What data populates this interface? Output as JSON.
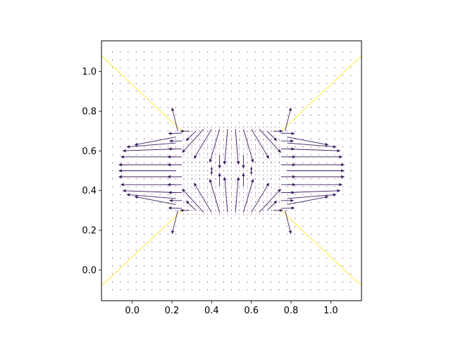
{
  "chart_data": {
    "type": "quiver",
    "title": "",
    "xlabel": "",
    "ylabel": "",
    "xlim": [
      -0.155,
      1.155
    ],
    "ylim": [
      -0.155,
      1.155
    ],
    "xticks": [
      0.0,
      0.2,
      0.4,
      0.6,
      0.8,
      1.0
    ],
    "xtick_labels": [
      "0.0",
      "0.2",
      "0.4",
      "0.6",
      "0.8",
      "1.0"
    ],
    "yticks": [
      0.0,
      0.2,
      0.4,
      0.6,
      0.8,
      1.0
    ],
    "ytick_labels": [
      "0.0",
      "0.2",
      "0.4",
      "0.6",
      "0.8",
      "1.0"
    ],
    "grid": false,
    "aspect": "equal",
    "colors": {
      "arrows": "#3b1f5e",
      "dots": "#440154",
      "diagonals": "#fde725",
      "axes": "#000000"
    },
    "diagonal_lines": [
      {
        "x": [
          -0.155,
          0.25
        ],
        "y": [
          1.08,
          0.7
        ]
      },
      {
        "x": [
          0.75,
          1.155
        ],
        "y": [
          0.7,
          1.08
        ]
      },
      {
        "x": [
          -0.155,
          0.25
        ],
        "y": [
          -0.08,
          0.3
        ]
      },
      {
        "x": [
          0.75,
          1.155
        ],
        "y": [
          0.3,
          -0.08
        ]
      }
    ],
    "arrows": [
      {
        "x": 0.25,
        "y": 0.31,
        "u": -0.07,
        "v": 0.003
      },
      {
        "x": 0.25,
        "y": 0.35,
        "u": -0.065,
        "v": 0.0
      },
      {
        "x": 0.25,
        "y": 0.39,
        "u": -0.07,
        "v": 0.0
      },
      {
        "x": 0.25,
        "y": 0.43,
        "u": -0.075,
        "v": 0.0
      },
      {
        "x": 0.25,
        "y": 0.47,
        "u": -0.075,
        "v": 0.0
      },
      {
        "x": 0.25,
        "y": 0.53,
        "u": -0.075,
        "v": 0.0
      },
      {
        "x": 0.25,
        "y": 0.57,
        "u": -0.075,
        "v": 0.0
      },
      {
        "x": 0.25,
        "y": 0.61,
        "u": -0.07,
        "v": 0.0
      },
      {
        "x": 0.25,
        "y": 0.65,
        "u": -0.065,
        "v": 0.0
      },
      {
        "x": 0.25,
        "y": 0.69,
        "u": -0.07,
        "v": -0.003
      },
      {
        "x": 0.22,
        "y": 0.33,
        "u": -0.21,
        "v": 0.04
      },
      {
        "x": 0.22,
        "y": 0.36,
        "u": -0.25,
        "v": 0.02
      },
      {
        "x": 0.22,
        "y": 0.39,
        "u": -0.27,
        "v": 0.01
      },
      {
        "x": 0.22,
        "y": 0.43,
        "u": -0.28,
        "v": 0.0
      },
      {
        "x": 0.22,
        "y": 0.47,
        "u": -0.29,
        "v": 0.0
      },
      {
        "x": 0.22,
        "y": 0.5,
        "u": -0.29,
        "v": 0.0
      },
      {
        "x": 0.22,
        "y": 0.53,
        "u": -0.29,
        "v": 0.0
      },
      {
        "x": 0.22,
        "y": 0.57,
        "u": -0.28,
        "v": 0.0
      },
      {
        "x": 0.22,
        "y": 0.61,
        "u": -0.27,
        "v": -0.01
      },
      {
        "x": 0.22,
        "y": 0.64,
        "u": -0.25,
        "v": -0.02
      },
      {
        "x": 0.22,
        "y": 0.67,
        "u": -0.21,
        "v": -0.04
      },
      {
        "x": 0.75,
        "y": 0.31,
        "u": 0.07,
        "v": 0.003
      },
      {
        "x": 0.75,
        "y": 0.35,
        "u": 0.065,
        "v": 0.0
      },
      {
        "x": 0.75,
        "y": 0.39,
        "u": 0.07,
        "v": 0.0
      },
      {
        "x": 0.75,
        "y": 0.43,
        "u": 0.075,
        "v": 0.0
      },
      {
        "x": 0.75,
        "y": 0.47,
        "u": 0.075,
        "v": 0.0
      },
      {
        "x": 0.75,
        "y": 0.53,
        "u": 0.075,
        "v": 0.0
      },
      {
        "x": 0.75,
        "y": 0.57,
        "u": 0.075,
        "v": 0.0
      },
      {
        "x": 0.75,
        "y": 0.61,
        "u": 0.07,
        "v": 0.0
      },
      {
        "x": 0.75,
        "y": 0.65,
        "u": 0.065,
        "v": 0.0
      },
      {
        "x": 0.75,
        "y": 0.69,
        "u": 0.07,
        "v": -0.003
      },
      {
        "x": 0.78,
        "y": 0.33,
        "u": 0.21,
        "v": 0.04
      },
      {
        "x": 0.78,
        "y": 0.36,
        "u": 0.25,
        "v": 0.02
      },
      {
        "x": 0.78,
        "y": 0.39,
        "u": 0.27,
        "v": 0.01
      },
      {
        "x": 0.78,
        "y": 0.43,
        "u": 0.28,
        "v": 0.0
      },
      {
        "x": 0.78,
        "y": 0.47,
        "u": 0.29,
        "v": 0.0
      },
      {
        "x": 0.78,
        "y": 0.5,
        "u": 0.29,
        "v": 0.0
      },
      {
        "x": 0.78,
        "y": 0.53,
        "u": 0.29,
        "v": 0.0
      },
      {
        "x": 0.78,
        "y": 0.57,
        "u": 0.28,
        "v": 0.0
      },
      {
        "x": 0.78,
        "y": 0.61,
        "u": 0.27,
        "v": -0.01
      },
      {
        "x": 0.78,
        "y": 0.64,
        "u": 0.25,
        "v": -0.02
      },
      {
        "x": 0.78,
        "y": 0.67,
        "u": 0.21,
        "v": -0.04
      },
      {
        "x": 0.36,
        "y": 0.71,
        "u": -0.11,
        "v": -0.12
      },
      {
        "x": 0.4,
        "y": 0.71,
        "u": -0.09,
        "v": -0.15
      },
      {
        "x": 0.44,
        "y": 0.71,
        "u": -0.05,
        "v": -0.17
      },
      {
        "x": 0.48,
        "y": 0.71,
        "u": -0.015,
        "v": -0.18
      },
      {
        "x": 0.52,
        "y": 0.71,
        "u": 0.015,
        "v": -0.18
      },
      {
        "x": 0.56,
        "y": 0.71,
        "u": 0.05,
        "v": -0.17
      },
      {
        "x": 0.6,
        "y": 0.71,
        "u": 0.09,
        "v": -0.15
      },
      {
        "x": 0.64,
        "y": 0.71,
        "u": 0.11,
        "v": -0.12
      },
      {
        "x": 0.32,
        "y": 0.7,
        "u": -0.05,
        "v": -0.05
      },
      {
        "x": 0.68,
        "y": 0.7,
        "u": 0.05,
        "v": -0.05
      },
      {
        "x": 0.36,
        "y": 0.29,
        "u": -0.11,
        "v": 0.12
      },
      {
        "x": 0.4,
        "y": 0.29,
        "u": -0.09,
        "v": 0.15
      },
      {
        "x": 0.44,
        "y": 0.29,
        "u": -0.05,
        "v": 0.17
      },
      {
        "x": 0.48,
        "y": 0.29,
        "u": -0.015,
        "v": 0.18
      },
      {
        "x": 0.52,
        "y": 0.29,
        "u": 0.015,
        "v": 0.18
      },
      {
        "x": 0.56,
        "y": 0.29,
        "u": 0.05,
        "v": 0.17
      },
      {
        "x": 0.6,
        "y": 0.29,
        "u": 0.09,
        "v": 0.15
      },
      {
        "x": 0.64,
        "y": 0.29,
        "u": 0.11,
        "v": 0.12
      },
      {
        "x": 0.32,
        "y": 0.3,
        "u": -0.05,
        "v": 0.05
      },
      {
        "x": 0.68,
        "y": 0.3,
        "u": 0.05,
        "v": 0.05
      },
      {
        "x": 0.44,
        "y": 0.58,
        "u": 0.0,
        "v": -0.07
      },
      {
        "x": 0.44,
        "y": 0.42,
        "u": 0.0,
        "v": 0.07
      },
      {
        "x": 0.56,
        "y": 0.58,
        "u": 0.0,
        "v": -0.07
      },
      {
        "x": 0.56,
        "y": 0.42,
        "u": 0.0,
        "v": 0.07
      },
      {
        "x": 0.4,
        "y": 0.52,
        "u": 0.0,
        "v": -0.04
      },
      {
        "x": 0.4,
        "y": 0.48,
        "u": 0.0,
        "v": 0.04
      },
      {
        "x": 0.6,
        "y": 0.52,
        "u": 0.0,
        "v": -0.04
      },
      {
        "x": 0.6,
        "y": 0.48,
        "u": 0.0,
        "v": 0.04
      },
      {
        "x": 0.23,
        "y": 0.7,
        "u": -0.03,
        "v": 0.12
      },
      {
        "x": 0.29,
        "y": 0.7,
        "u": -0.05,
        "v": 0.0
      },
      {
        "x": 0.77,
        "y": 0.7,
        "u": 0.03,
        "v": 0.12
      },
      {
        "x": 0.71,
        "y": 0.7,
        "u": 0.05,
        "v": 0.0
      },
      {
        "x": 0.23,
        "y": 0.3,
        "u": -0.03,
        "v": -0.12
      },
      {
        "x": 0.29,
        "y": 0.3,
        "u": -0.05,
        "v": 0.0
      },
      {
        "x": 0.77,
        "y": 0.3,
        "u": 0.03,
        "v": -0.12
      },
      {
        "x": 0.71,
        "y": 0.3,
        "u": 0.05,
        "v": 0.0
      }
    ]
  }
}
